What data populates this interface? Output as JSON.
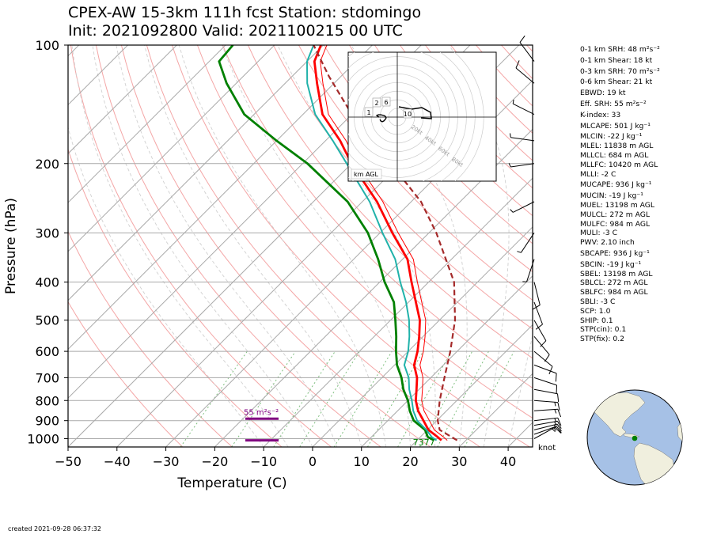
{
  "header": {
    "title_line1": "CPEX-AW 15-3km  111h fcst  Station: stdomingo",
    "title_line2": "Init: 2021092800  Valid: 2021100215 00 UTC"
  },
  "footer": {
    "created": "created 2021-09-28 06:37:32"
  },
  "indices": [
    "0-1 km SRH: 48 m²s⁻²",
    "0-1 km Shear: 18 kt",
    "0-3 km SRH: 70 m²s⁻²",
    "0-6 km Shear: 21 kt",
    "EBWD: 19 kt",
    "Eff. SRH: 55 m²s⁻²",
    "K-index: 33",
    "MLCAPE: 501 J kg⁻¹",
    "MLCIN: -22 J kg⁻¹",
    "MLEL: 11838 m AGL",
    "MLLCL: 684 m AGL",
    "MLLFC: 10420 m AGL",
    "MLLI: -2 C",
    "MUCAPE: 936 J kg⁻¹",
    "MUCIN: -19 J kg⁻¹",
    "MUEL: 13198 m AGL",
    "MULCL: 272 m AGL",
    "MULFC: 984 m AGL",
    "MULI: -3 C",
    "PWV: 2.10 inch",
    "SBCAPE: 936 J kg⁻¹",
    "SBCIN: -19 J kg⁻¹",
    "SBEL: 13198 m AGL",
    "SBLCL: 272 m AGL",
    "SBLFC: 984 m AGL",
    "SBLI: -3 C",
    "SCP: 1.0",
    "SHIP: 0.1",
    "STP(cin): 0.1",
    "STP(fix): 0.2"
  ],
  "colors": {
    "temperature": "#ff0000",
    "dewpoint": "#008000",
    "wetbulb": "#20b2aa",
    "parcel": "#a52a2a",
    "effective_layer": "#800080",
    "dry_adiabat": "#f4a6a6",
    "moist_adiabat": "#d0d0d0",
    "mixing_ratio": "#7fbf7f",
    "ocean": "#a6c1e6",
    "land": "#f0efde"
  },
  "chart_data": {
    "type": "skew-t",
    "xlabel": "Temperature (C)",
    "ylabel": "Pressure (hPa)",
    "xlim": [
      -50,
      45
    ],
    "ylim": [
      1050,
      100
    ],
    "x_ticks": [
      -50,
      -40,
      -30,
      -20,
      -10,
      0,
      10,
      20,
      30,
      40
    ],
    "x_tick_labels": [
      "−50",
      "−40",
      "−30",
      "−20",
      "−10",
      "0",
      "10",
      "20",
      "30",
      "40"
    ],
    "y_ticks": [
      1000,
      900,
      800,
      700,
      600,
      500,
      400,
      300,
      200,
      100
    ],
    "y_tick_labels": [
      "1000",
      "900",
      "800",
      "700",
      "600",
      "500",
      "400",
      "300",
      "200",
      "100"
    ],
    "surface_label": "7377",
    "wind_unit_label": "knot",
    "effective_layer": {
      "label": "55 m²s⁻²",
      "bottom_hpa": 1010,
      "top_hpa": 890
    },
    "series": [
      {
        "name": "temperature",
        "pressure_hpa": [
          1010,
          990,
          950,
          900,
          850,
          800,
          750,
          700,
          650,
          600,
          550,
          500,
          450,
          400,
          350,
          300,
          250,
          200,
          175,
          150,
          125,
          110,
          100
        ],
        "temp_c": [
          25,
          23.5,
          20.2,
          17.3,
          14.2,
          11.6,
          9.5,
          7.2,
          4.0,
          1.9,
          -0.8,
          -4.0,
          -8.5,
          -13.5,
          -19.0,
          -27.5,
          -37.0,
          -50.0,
          -57.0,
          -66.0,
          -73.5,
          -78.5,
          -80.5
        ]
      },
      {
        "name": "dewpoint",
        "pressure_hpa": [
          1010,
          990,
          950,
          900,
          850,
          800,
          750,
          700,
          650,
          600,
          550,
          500,
          450,
          400,
          350,
          300,
          250,
          200,
          175,
          150,
          125,
          110,
          100
        ],
        "temp_c": [
          23.5,
          21.5,
          19.5,
          15.3,
          12.5,
          10.0,
          6.8,
          4.0,
          0.5,
          -2.5,
          -5.5,
          -9.0,
          -13.0,
          -19.0,
          -25.0,
          -32.5,
          -43.0,
          -59.0,
          -70.0,
          -82.0,
          -92.0,
          -98.0,
          -98.5
        ]
      },
      {
        "name": "wetbulb",
        "pressure_hpa": [
          1010,
          990,
          950,
          900,
          850,
          800,
          750,
          700,
          650,
          600,
          550,
          500,
          450,
          400,
          350,
          300,
          250,
          200,
          175,
          150,
          125,
          110,
          100
        ],
        "temp_c": [
          24.0,
          22.3,
          19.8,
          16.0,
          13.2,
          10.8,
          8.0,
          5.5,
          2.0,
          0.0,
          -2.8,
          -6.2,
          -10.5,
          -15.8,
          -21.5,
          -29.5,
          -38.5,
          -51.0,
          -58.5,
          -67.5,
          -75.5,
          -80.0,
          -82.0
        ]
      },
      {
        "name": "parcel",
        "pressure_hpa": [
          1010,
          950,
          900,
          850,
          800,
          700,
          600,
          500,
          400,
          300,
          250,
          200,
          150,
          120,
          100
        ],
        "temp_c": [
          28.2,
          22.5,
          20.2,
          18.4,
          16.5,
          12.8,
          8.6,
          3.2,
          -4.8,
          -18.5,
          -28.0,
          -42.0,
          -60.0,
          -72.5,
          -82.0
        ]
      }
    ],
    "wind_barbs": [
      {
        "pressure_hpa": 1000,
        "u_kt": -11,
        "v_kt": -6
      },
      {
        "pressure_hpa": 975,
        "u_kt": -14,
        "v_kt": -5
      },
      {
        "pressure_hpa": 950,
        "u_kt": -16,
        "v_kt": -4
      },
      {
        "pressure_hpa": 925,
        "u_kt": -17,
        "v_kt": -3
      },
      {
        "pressure_hpa": 900,
        "u_kt": -17,
        "v_kt": -2
      },
      {
        "pressure_hpa": 850,
        "u_kt": -15,
        "v_kt": -1
      },
      {
        "pressure_hpa": 800,
        "u_kt": -13,
        "v_kt": 1
      },
      {
        "pressure_hpa": 750,
        "u_kt": -11,
        "v_kt": 2
      },
      {
        "pressure_hpa": 700,
        "u_kt": -9,
        "v_kt": 3
      },
      {
        "pressure_hpa": 650,
        "u_kt": -8,
        "v_kt": 3
      },
      {
        "pressure_hpa": 600,
        "u_kt": -6,
        "v_kt": 5
      },
      {
        "pressure_hpa": 550,
        "u_kt": -5,
        "v_kt": 6
      },
      {
        "pressure_hpa": 500,
        "u_kt": -4,
        "v_kt": 7
      },
      {
        "pressure_hpa": 450,
        "u_kt": -3,
        "v_kt": 8
      },
      {
        "pressure_hpa": 400,
        "u_kt": -2,
        "v_kt": 8
      },
      {
        "pressure_hpa": 350,
        "u_kt": 2,
        "v_kt": 6
      },
      {
        "pressure_hpa": 300,
        "u_kt": 4,
        "v_kt": 6
      },
      {
        "pressure_hpa": 250,
        "u_kt": 6,
        "v_kt": 3
      },
      {
        "pressure_hpa": 200,
        "u_kt": 7,
        "v_kt": 1
      },
      {
        "pressure_hpa": 175,
        "u_kt": 7,
        "v_kt": -1
      },
      {
        "pressure_hpa": 150,
        "u_kt": 6,
        "v_kt": -3
      },
      {
        "pressure_hpa": 125,
        "u_kt": 6,
        "v_kt": -5
      },
      {
        "pressure_hpa": 110,
        "u_kt": 6,
        "v_kt": -8
      }
    ],
    "hodograph": {
      "ring_labels": [
        "20kt",
        "40kt",
        "60kt",
        "80kt"
      ],
      "ring_values_kt": [
        20,
        40,
        60,
        80
      ],
      "corner_label": "km AGL",
      "height_labels": [
        "1",
        "2",
        "6",
        "10"
      ],
      "u_kt": [
        -4,
        -3,
        -1,
        1,
        3,
        4,
        3,
        1,
        -3,
        -6,
        -8,
        -7,
        -5
      ],
      "v_kt": [
        -3,
        -5,
        -6,
        -5,
        -3,
        -1,
        1,
        2,
        3,
        3,
        2,
        1,
        0
      ]
    },
    "globe": {
      "station_lat": 18.5,
      "station_lon": -69.9
    }
  }
}
